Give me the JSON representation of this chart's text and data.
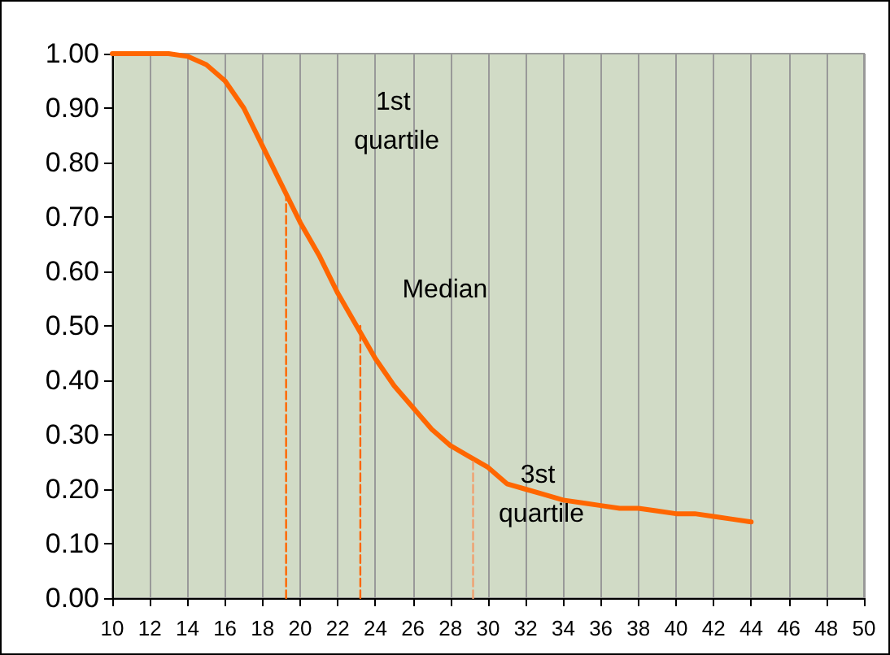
{
  "chart_data": {
    "type": "line",
    "xlim": [
      10,
      50
    ],
    "xticks": [
      10,
      12,
      14,
      16,
      18,
      20,
      22,
      24,
      26,
      28,
      30,
      32,
      34,
      36,
      38,
      40,
      42,
      44,
      46,
      48,
      50
    ],
    "ylim": [
      0,
      1
    ],
    "yticks": [
      {
        "value": 0,
        "label": "0.00"
      },
      {
        "value": 0.1,
        "label": "0.10"
      },
      {
        "value": 0.2,
        "label": "0.20"
      },
      {
        "value": 0.3,
        "label": "0.30"
      },
      {
        "value": 0.4,
        "label": "0.40"
      },
      {
        "value": 0.5,
        "label": "0.50"
      },
      {
        "value": 0.6,
        "label": "0.60"
      },
      {
        "value": 0.7,
        "label": "0.70"
      },
      {
        "value": 0.8,
        "label": "0.80"
      },
      {
        "value": 0.9,
        "label": "0.90"
      },
      {
        "value": 1,
        "label": "1.00"
      }
    ],
    "grid": "x",
    "marker": "none",
    "series": [
      {
        "color": "#ff6600",
        "line_style": "solid",
        "x": [
          10,
          12,
          13,
          14,
          15,
          16,
          17,
          18,
          19,
          20,
          21,
          22,
          23,
          24,
          25,
          26,
          27,
          28,
          29,
          30,
          31,
          32,
          33,
          34,
          35,
          36,
          37,
          38,
          39,
          40,
          41,
          42,
          43,
          44
        ],
        "values": [
          1,
          1,
          1,
          0.995,
          0.98,
          0.95,
          0.9,
          0.83,
          0.76,
          0.69,
          0.63,
          0.56,
          0.5,
          0.44,
          0.39,
          0.35,
          0.31,
          0.28,
          0.26,
          0.24,
          0.21,
          0.2,
          0.19,
          0.18,
          0.175,
          0.17,
          0.165,
          0.165,
          0.16,
          0.155,
          0.155,
          0.15,
          0.145,
          0.14
        ]
      },
      {
        "color": "#ff6600",
        "line_style": "dashed",
        "x": [
          19.25,
          19.25
        ],
        "values": [
          0,
          0.75
        ]
      },
      {
        "color": "#ff6600",
        "line_style": "dashed",
        "x": [
          23.2,
          23.2
        ],
        "values": [
          0,
          0.5
        ]
      },
      {
        "color": "#f0a070",
        "line_style": "dashed",
        "x": [
          29.2,
          29.2
        ],
        "values": [
          0,
          0.25
        ]
      }
    ],
    "annotations": [
      "1st quartile",
      "Median",
      "3st quartile"
    ]
  }
}
